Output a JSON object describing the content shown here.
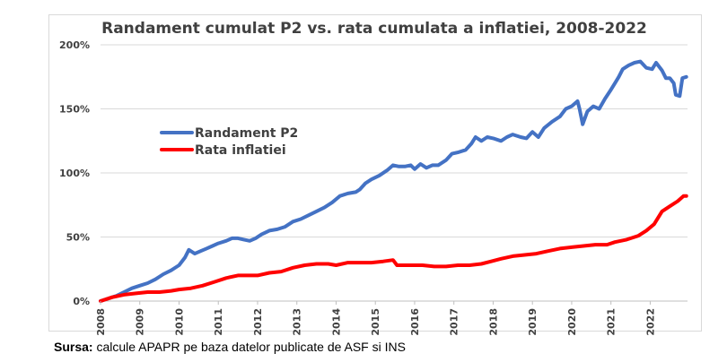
{
  "chart_data": {
    "type": "line",
    "title": "Randament cumulat P2 vs. rata cumulata a inflatiei, 2008-2022",
    "xlabel": "",
    "ylabel": "",
    "x_ticks": [
      "2008",
      "2009",
      "2010",
      "2011",
      "2012",
      "2013",
      "2014",
      "2015",
      "2016",
      "2017",
      "2018",
      "2019",
      "2020",
      "2021",
      "2022"
    ],
    "y_ticks": [
      "0%",
      "50%",
      "100%",
      "150%",
      "200%"
    ],
    "xlim": [
      2008,
      2022.95
    ],
    "ylim": [
      0,
      200
    ],
    "grid": "horizontal",
    "legend_position": "center-left",
    "series": [
      {
        "name": "Randament P2",
        "color": "#4472c4",
        "points": [
          [
            2008.0,
            0
          ],
          [
            2008.2,
            2
          ],
          [
            2008.4,
            4
          ],
          [
            2008.6,
            7
          ],
          [
            2008.8,
            10
          ],
          [
            2009.0,
            12
          ],
          [
            2009.2,
            14
          ],
          [
            2009.4,
            17
          ],
          [
            2009.6,
            21
          ],
          [
            2009.8,
            24
          ],
          [
            2010.0,
            28
          ],
          [
            2010.15,
            34
          ],
          [
            2010.25,
            40
          ],
          [
            2010.4,
            37
          ],
          [
            2010.55,
            39
          ],
          [
            2010.7,
            41
          ],
          [
            2010.85,
            43
          ],
          [
            2011.0,
            45
          ],
          [
            2011.2,
            47
          ],
          [
            2011.35,
            49
          ],
          [
            2011.5,
            49
          ],
          [
            2011.65,
            48
          ],
          [
            2011.8,
            47
          ],
          [
            2011.95,
            49
          ],
          [
            2012.1,
            52
          ],
          [
            2012.3,
            55
          ],
          [
            2012.5,
            56
          ],
          [
            2012.7,
            58
          ],
          [
            2012.9,
            62
          ],
          [
            2013.1,
            64
          ],
          [
            2013.3,
            67
          ],
          [
            2013.5,
            70
          ],
          [
            2013.7,
            73
          ],
          [
            2013.9,
            77
          ],
          [
            2014.1,
            82
          ],
          [
            2014.3,
            84
          ],
          [
            2014.5,
            85
          ],
          [
            2014.6,
            87
          ],
          [
            2014.75,
            92
          ],
          [
            2014.9,
            95
          ],
          [
            2015.1,
            98
          ],
          [
            2015.3,
            102
          ],
          [
            2015.45,
            106
          ],
          [
            2015.6,
            105
          ],
          [
            2015.75,
            105
          ],
          [
            2015.9,
            106
          ],
          [
            2016.0,
            103
          ],
          [
            2016.15,
            107
          ],
          [
            2016.3,
            104
          ],
          [
            2016.45,
            106
          ],
          [
            2016.6,
            106
          ],
          [
            2016.8,
            110
          ],
          [
            2016.95,
            115
          ],
          [
            2017.1,
            116
          ],
          [
            2017.3,
            118
          ],
          [
            2017.45,
            123
          ],
          [
            2017.55,
            128
          ],
          [
            2017.7,
            125
          ],
          [
            2017.85,
            128
          ],
          [
            2018.0,
            127
          ],
          [
            2018.2,
            125
          ],
          [
            2018.35,
            128
          ],
          [
            2018.5,
            130
          ],
          [
            2018.7,
            128
          ],
          [
            2018.85,
            127
          ],
          [
            2019.0,
            132
          ],
          [
            2019.15,
            128
          ],
          [
            2019.3,
            135
          ],
          [
            2019.5,
            140
          ],
          [
            2019.7,
            144
          ],
          [
            2019.85,
            150
          ],
          [
            2020.0,
            152
          ],
          [
            2020.15,
            156
          ],
          [
            2020.2,
            150
          ],
          [
            2020.28,
            138
          ],
          [
            2020.4,
            148
          ],
          [
            2020.55,
            152
          ],
          [
            2020.7,
            150
          ],
          [
            2020.85,
            158
          ],
          [
            2021.0,
            165
          ],
          [
            2021.1,
            170
          ],
          [
            2021.2,
            175
          ],
          [
            2021.3,
            181
          ],
          [
            2021.45,
            184
          ],
          [
            2021.6,
            186
          ],
          [
            2021.75,
            187
          ],
          [
            2021.9,
            182
          ],
          [
            2022.05,
            181
          ],
          [
            2022.15,
            186
          ],
          [
            2022.3,
            180
          ],
          [
            2022.4,
            174
          ],
          [
            2022.5,
            174
          ],
          [
            2022.6,
            170
          ],
          [
            2022.65,
            161
          ],
          [
            2022.75,
            160
          ],
          [
            2022.82,
            174
          ],
          [
            2022.92,
            175
          ]
        ]
      },
      {
        "name": "Rata inflatiei",
        "color": "#ff0000",
        "points": [
          [
            2008.0,
            0
          ],
          [
            2008.3,
            3
          ],
          [
            2008.6,
            5
          ],
          [
            2008.9,
            6
          ],
          [
            2009.2,
            7
          ],
          [
            2009.5,
            7
          ],
          [
            2009.8,
            8
          ],
          [
            2010.0,
            9
          ],
          [
            2010.3,
            10
          ],
          [
            2010.6,
            12
          ],
          [
            2010.9,
            15
          ],
          [
            2011.2,
            18
          ],
          [
            2011.5,
            20
          ],
          [
            2011.8,
            20
          ],
          [
            2012.0,
            20
          ],
          [
            2012.3,
            22
          ],
          [
            2012.6,
            23
          ],
          [
            2012.9,
            26
          ],
          [
            2013.2,
            28
          ],
          [
            2013.5,
            29
          ],
          [
            2013.8,
            29
          ],
          [
            2014.0,
            28
          ],
          [
            2014.3,
            30
          ],
          [
            2014.6,
            30
          ],
          [
            2014.9,
            30
          ],
          [
            2015.2,
            31
          ],
          [
            2015.45,
            32
          ],
          [
            2015.55,
            28
          ],
          [
            2015.9,
            28
          ],
          [
            2016.2,
            28
          ],
          [
            2016.5,
            27
          ],
          [
            2016.8,
            27
          ],
          [
            2017.1,
            28
          ],
          [
            2017.4,
            28
          ],
          [
            2017.7,
            29
          ],
          [
            2017.95,
            31
          ],
          [
            2018.2,
            33
          ],
          [
            2018.5,
            35
          ],
          [
            2018.8,
            36
          ],
          [
            2019.1,
            37
          ],
          [
            2019.4,
            39
          ],
          [
            2019.7,
            41
          ],
          [
            2020.0,
            42
          ],
          [
            2020.3,
            43
          ],
          [
            2020.6,
            44
          ],
          [
            2020.9,
            44
          ],
          [
            2021.1,
            46
          ],
          [
            2021.4,
            48
          ],
          [
            2021.7,
            51
          ],
          [
            2021.9,
            55
          ],
          [
            2022.1,
            60
          ],
          [
            2022.3,
            70
          ],
          [
            2022.5,
            74
          ],
          [
            2022.7,
            78
          ],
          [
            2022.85,
            82
          ],
          [
            2022.92,
            82
          ]
        ]
      }
    ]
  },
  "source": {
    "label": "Sursa:",
    "text": " calcule APAPR pe baza datelor publicate de ASF si INS"
  }
}
